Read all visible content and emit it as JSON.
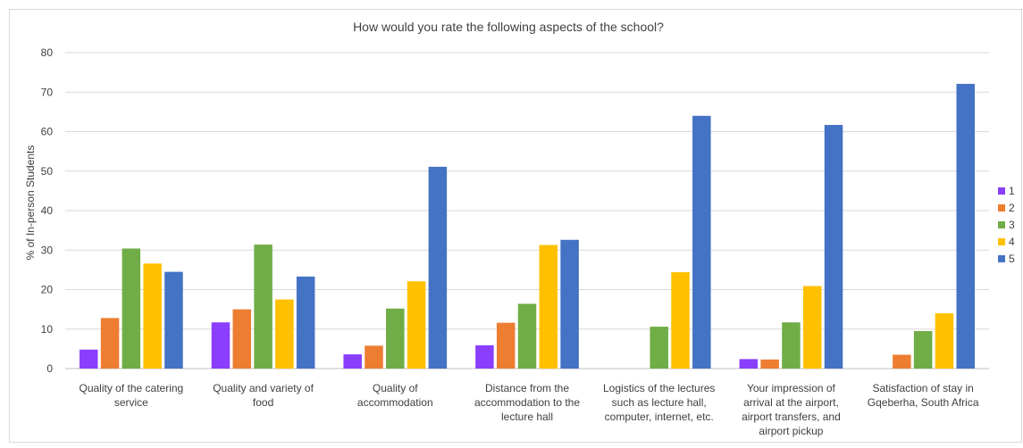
{
  "chart_data": {
    "type": "bar",
    "title": "How would you rate the following aspects of the school?",
    "xlabel": "",
    "ylabel": "% of In-person Students",
    "ylim": [
      0,
      80
    ],
    "yticks": [
      0,
      10,
      20,
      30,
      40,
      50,
      60,
      70,
      80
    ],
    "grid": true,
    "legend_position": "right",
    "categories": [
      [
        "Quality of the catering",
        "service"
      ],
      [
        "Quality and variety of",
        "food"
      ],
      [
        "Quality of",
        "accommodation"
      ],
      [
        "Distance from the",
        "accommodation to the",
        "lecture hall"
      ],
      [
        "Logistics of the lectures",
        "such as lecture hall,",
        "computer, internet, etc."
      ],
      [
        "Your impression of",
        "arrival at the airport,",
        "airport transfers, and",
        "airport pickup"
      ],
      [
        "Satisfaction of stay in",
        "Gqeberha, South Africa"
      ]
    ],
    "series": [
      {
        "name": "1",
        "color": "#8a3ffc",
        "values": [
          4.8,
          11.7,
          3.6,
          5.9,
          0,
          2.4,
          0
        ]
      },
      {
        "name": "2",
        "color": "#ed7d31",
        "values": [
          12.8,
          15.0,
          5.8,
          11.6,
          0,
          2.3,
          3.5
        ]
      },
      {
        "name": "3",
        "color": "#70ad47",
        "values": [
          30.4,
          31.4,
          15.2,
          16.4,
          10.6,
          11.7,
          9.5
        ]
      },
      {
        "name": "4",
        "color": "#ffc000",
        "values": [
          26.6,
          17.5,
          22.1,
          31.3,
          24.4,
          20.9,
          14.0
        ]
      },
      {
        "name": "5",
        "color": "#4472c4",
        "values": [
          24.5,
          23.3,
          51.1,
          32.6,
          64.0,
          61.7,
          72.1
        ]
      }
    ]
  }
}
